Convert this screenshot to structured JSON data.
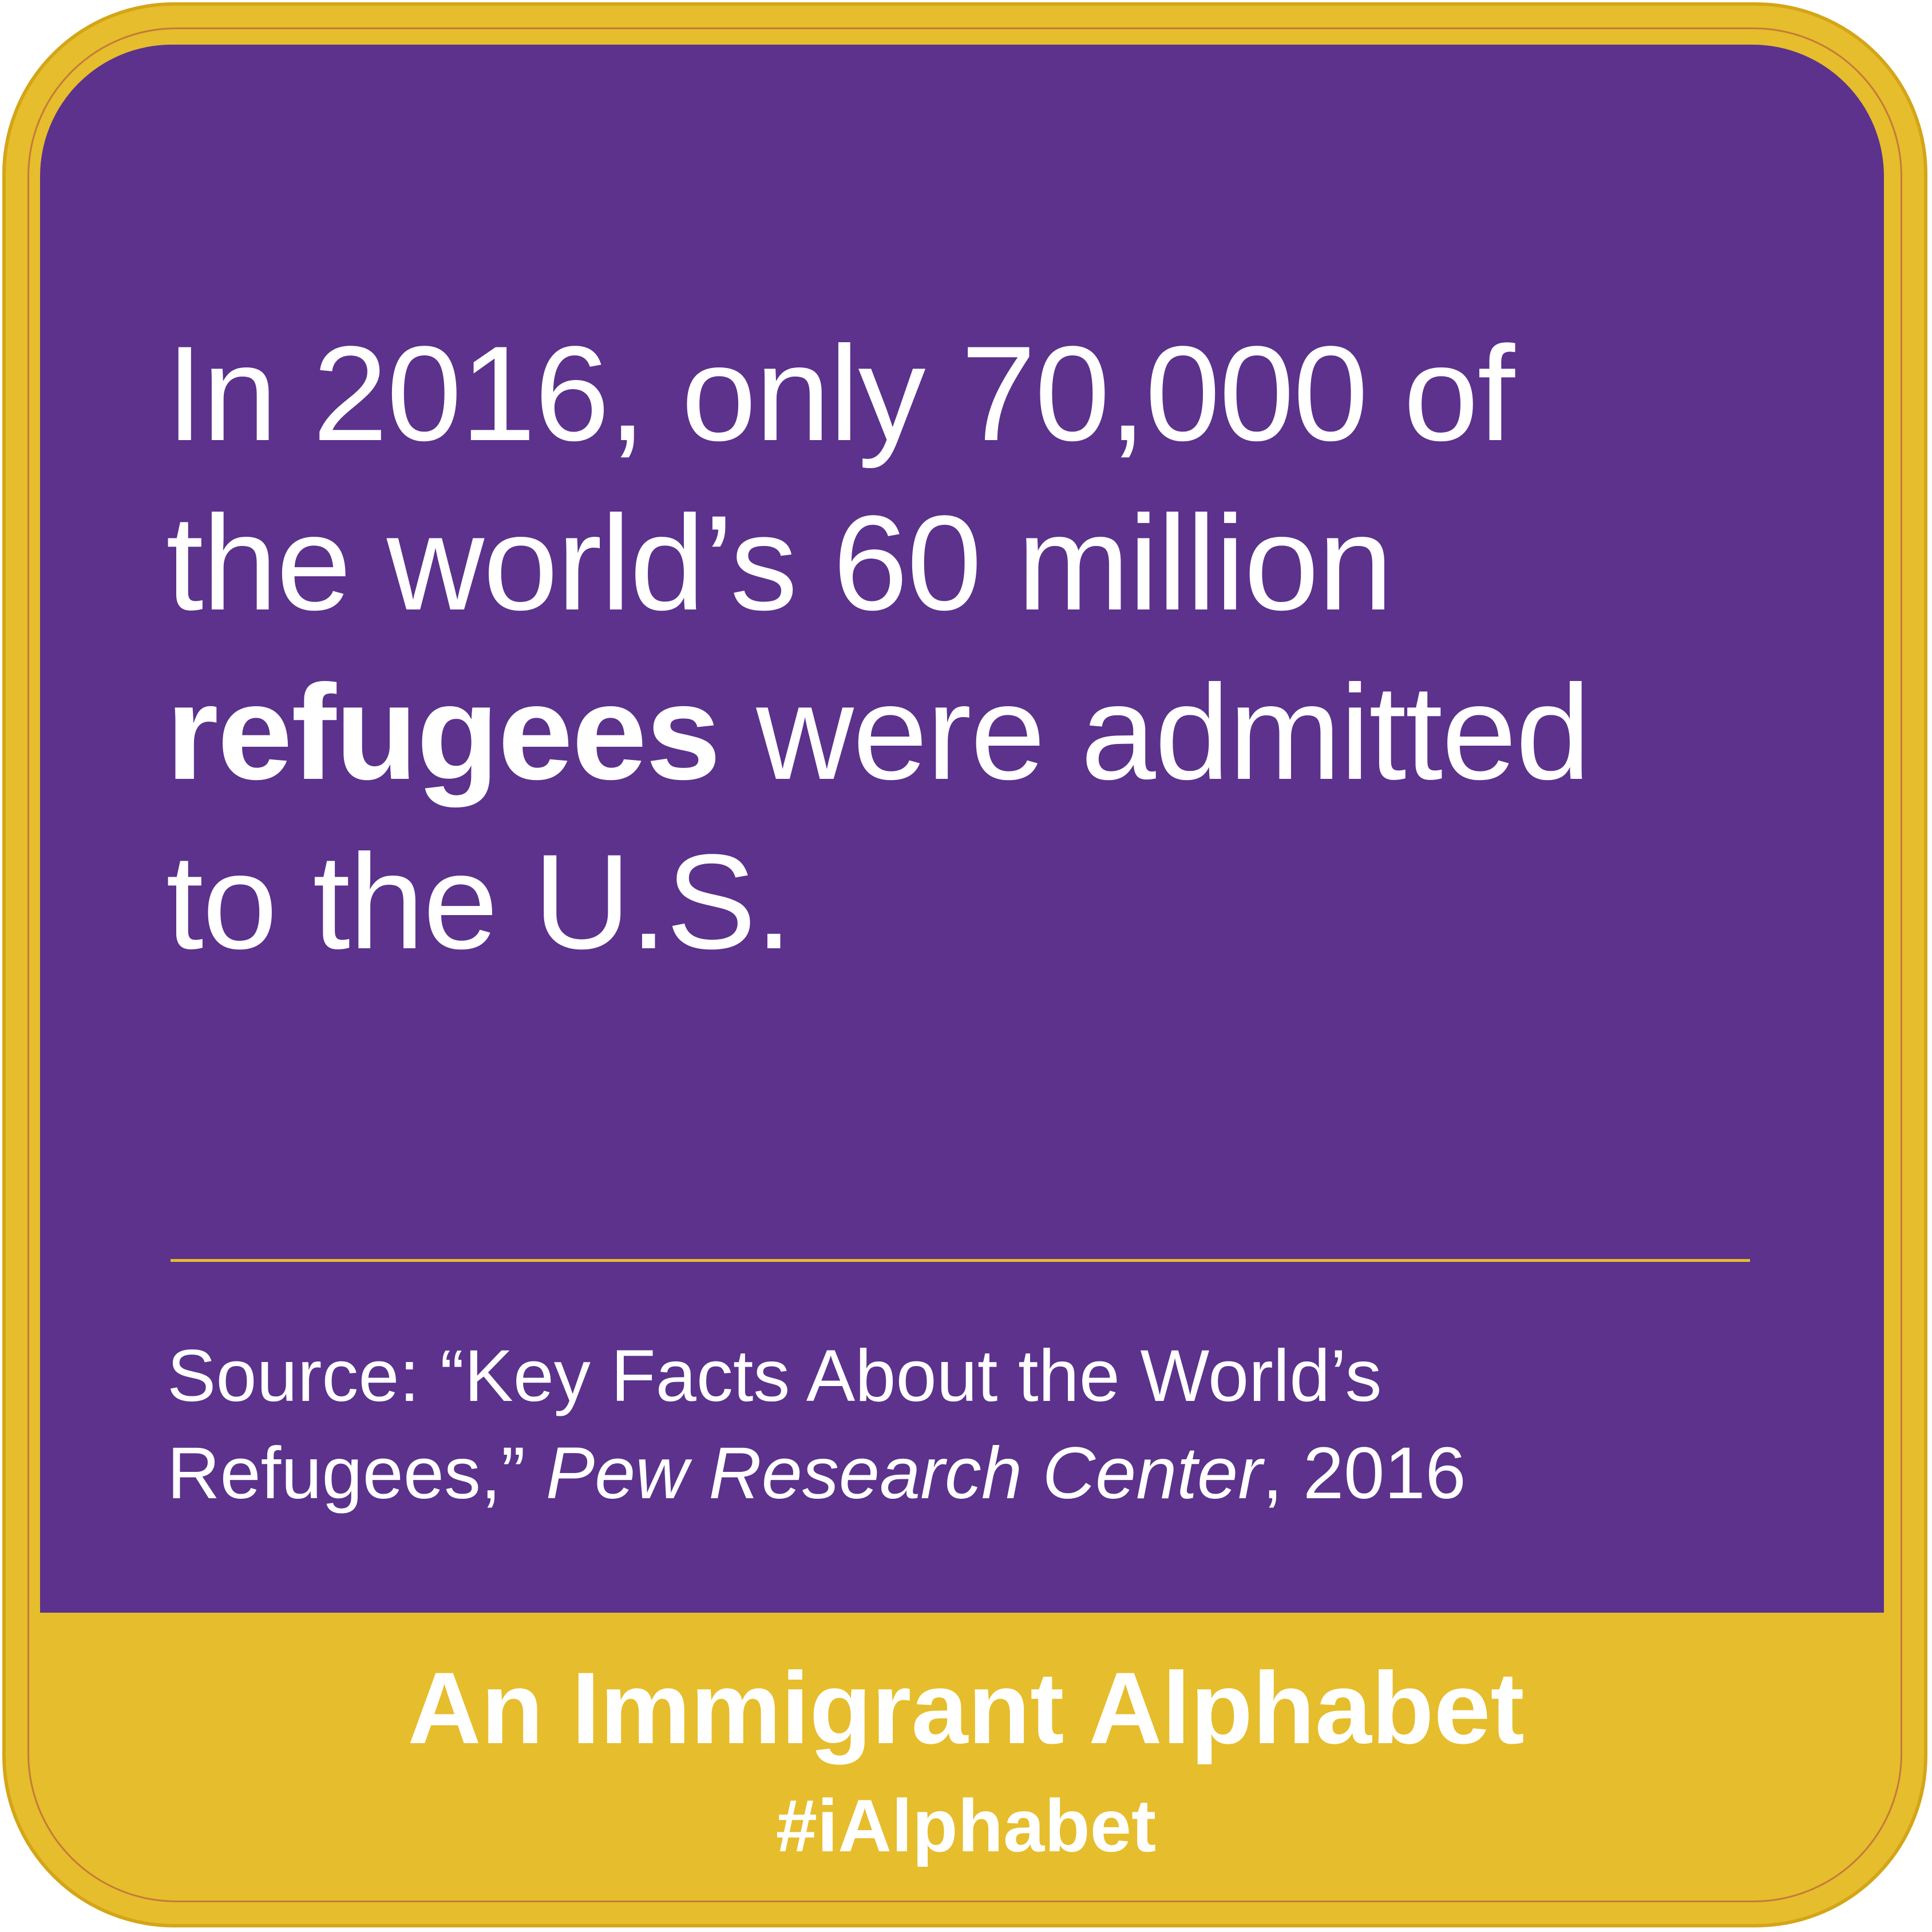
{
  "headline": {
    "line1": "In 2016, only 70,000 of",
    "line2": "the world’s 60 million",
    "line3_bold": "refugees",
    "line3_rest": " were admitted",
    "line4": "to the U.S."
  },
  "source": {
    "line1": "Source:  “Key Facts About the World’s",
    "line2_start": "Refugees,” ",
    "line2_italic": "Pew Research Center",
    "line2_end": ", 2016"
  },
  "footer": {
    "title": "An Immigrant Alphabet",
    "hashtag": "#iAlphabet"
  },
  "colors": {
    "purple": "#5c328c",
    "gold": "#e6bd2c",
    "text": "#ffffff"
  }
}
